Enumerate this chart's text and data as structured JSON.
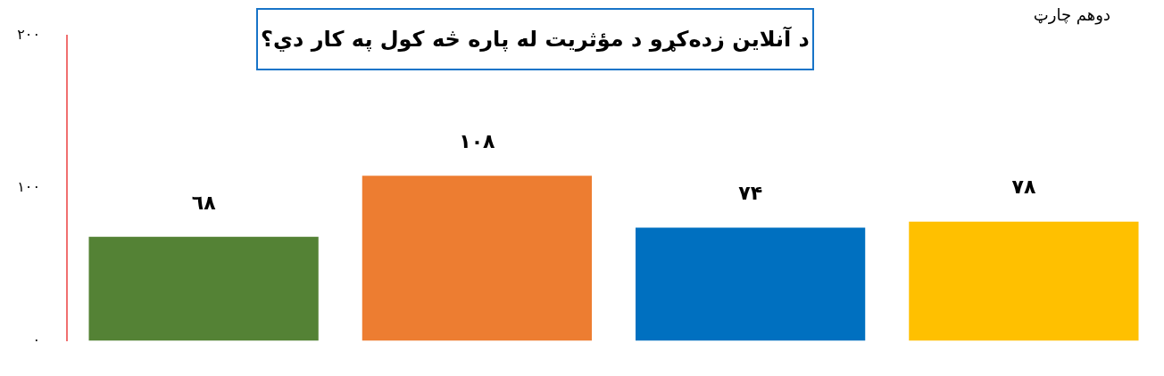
{
  "chart_data": {
    "type": "bar",
    "title": "د آنلاین زده‌کړو د مؤثریت له پاره څه کول په کار دي؟",
    "annotations": [
      "دوهم چارټ"
    ],
    "categories": [
      null,
      null,
      null,
      null
    ],
    "values": [
      68,
      108,
      74,
      78
    ],
    "colors": [
      "#548235",
      "#ed7d31",
      "#0070c0",
      "#ffc000"
    ],
    "value_labels": [
      "٦٨",
      "١٠٨",
      "٧۴",
      "٧٨"
    ],
    "ylim": [
      0,
      200
    ],
    "yticks": [
      {
        "value": 0,
        "label": "٠"
      },
      {
        "value": 100,
        "label": "١٠٠"
      },
      {
        "value": 200,
        "label": "٢٠٠"
      }
    ],
    "grid": false,
    "legend": false
  }
}
